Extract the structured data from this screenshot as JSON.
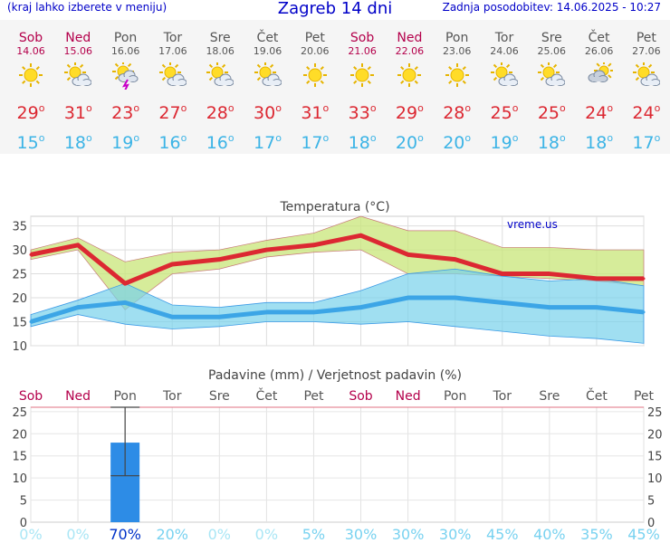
{
  "header": {
    "menu_hint": "(kraj lahko izberete v meniju)",
    "title": "Zagreb 14 dni",
    "updated": "Zadnja posodobitev: 14.06.2025 - 10:27"
  },
  "days": [
    {
      "name": "Sob",
      "date": "14.06",
      "weekend": true,
      "icon": "sun-icon",
      "tmax": "29",
      "tmin": "15"
    },
    {
      "name": "Ned",
      "date": "15.06",
      "weekend": true,
      "icon": "sun-cloud-icon",
      "tmax": "31",
      "tmin": "18"
    },
    {
      "name": "Pon",
      "date": "16.06",
      "weekend": false,
      "icon": "thunderstorm-icon",
      "tmax": "23",
      "tmin": "19"
    },
    {
      "name": "Tor",
      "date": "17.06",
      "weekend": false,
      "icon": "sun-cloud-icon",
      "tmax": "27",
      "tmin": "16"
    },
    {
      "name": "Sre",
      "date": "18.06",
      "weekend": false,
      "icon": "sun-cloud-icon",
      "tmax": "28",
      "tmin": "16"
    },
    {
      "name": "Čet",
      "date": "19.06",
      "weekend": false,
      "icon": "sun-cloud-icon",
      "tmax": "30",
      "tmin": "17"
    },
    {
      "name": "Pet",
      "date": "20.06",
      "weekend": false,
      "icon": "sun-icon",
      "tmax": "31",
      "tmin": "17"
    },
    {
      "name": "Sob",
      "date": "21.06",
      "weekend": true,
      "icon": "sun-icon",
      "tmax": "33",
      "tmin": "18"
    },
    {
      "name": "Ned",
      "date": "22.06",
      "weekend": true,
      "icon": "sun-icon",
      "tmax": "29",
      "tmin": "20"
    },
    {
      "name": "Pon",
      "date": "23.06",
      "weekend": false,
      "icon": "sun-icon",
      "tmax": "28",
      "tmin": "20"
    },
    {
      "name": "Tor",
      "date": "24.06",
      "weekend": false,
      "icon": "sun-cloud-icon",
      "tmax": "25",
      "tmin": "19"
    },
    {
      "name": "Sre",
      "date": "25.06",
      "weekend": false,
      "icon": "sun-cloud-icon",
      "tmax": "25",
      "tmin": "18"
    },
    {
      "name": "Čet",
      "date": "26.06",
      "weekend": false,
      "icon": "cloud-sun-icon",
      "tmax": "24",
      "tmin": "18"
    },
    {
      "name": "Pet",
      "date": "27.06",
      "weekend": false,
      "icon": "sun-cloud-icon",
      "tmax": "24",
      "tmin": "17"
    }
  ],
  "degree_sign": "o",
  "colors": {
    "header_blue": "#0000c8",
    "weekend": "#b4004b",
    "tmax": "#dc2832",
    "tmin": "#3cb4e6",
    "max_band": "#c8e678",
    "min_band": "#78d2eb",
    "bar": "#2d8ce6",
    "prob_zero": "#aae6f5",
    "prob_mid": "#78d2f0",
    "prob_high": "#0032c8"
  },
  "chart_data": [
    {
      "type": "line",
      "title": "Temperatura (°C)",
      "watermark": "vreme.us",
      "ylim": [
        10,
        37
      ],
      "yticks": [
        10,
        15,
        20,
        25,
        30,
        35
      ],
      "x": [
        0,
        1,
        2,
        3,
        4,
        5,
        6,
        7,
        8,
        9,
        10,
        11,
        12,
        13
      ],
      "series": [
        {
          "values": [
            29,
            31,
            23,
            27,
            28,
            30,
            31,
            33,
            29,
            28,
            25,
            25,
            24,
            24
          ]
        },
        {
          "values": [
            15,
            18,
            19,
            16,
            16,
            17,
            17,
            18,
            20,
            20,
            19,
            18,
            18,
            17
          ]
        },
        {
          "values": [
            30,
            32.5,
            27.5,
            29.5,
            30,
            32,
            33.5,
            37,
            34,
            34,
            30.5,
            30.5,
            30,
            30
          ]
        },
        {
          "values": [
            28,
            30,
            17.5,
            25,
            26,
            28.5,
            29.5,
            30,
            25,
            25,
            24.5,
            24,
            23.5,
            22.5
          ]
        },
        {
          "values": [
            16.5,
            19.5,
            23,
            18.5,
            18,
            19,
            19,
            21.5,
            25,
            26,
            24.5,
            23.5,
            24,
            22.5
          ]
        },
        {
          "values": [
            14,
            16.5,
            14.5,
            13.5,
            14,
            15,
            15,
            14.5,
            15,
            14,
            13,
            12,
            11.5,
            10.5
          ]
        }
      ]
    },
    {
      "type": "bar",
      "title": "Padavine (mm) / Verjetnost padavin (%)",
      "ylim": [
        0,
        26
      ],
      "yticks": [
        0,
        5,
        10,
        15,
        20,
        25
      ],
      "categories": [
        "Sob",
        "Ned",
        "Pon",
        "Tor",
        "Sre",
        "Čet",
        "Pet",
        "Sob",
        "Ned",
        "Pon",
        "Tor",
        "Sre",
        "Čet",
        "Pet"
      ],
      "weekend": [
        true,
        true,
        false,
        false,
        false,
        false,
        false,
        true,
        true,
        false,
        false,
        false,
        false,
        false
      ],
      "values": [
        0,
        0,
        18,
        0,
        0,
        0,
        0,
        0,
        0,
        0,
        0,
        0,
        0,
        0
      ],
      "error_low": [
        null,
        null,
        10.5,
        null,
        null,
        null,
        null,
        null,
        null,
        null,
        null,
        null,
        null,
        null
      ],
      "error_high": [
        null,
        null,
        26,
        null,
        null,
        null,
        null,
        null,
        null,
        null,
        null,
        null,
        null,
        null
      ],
      "probability": [
        "0%",
        "0%",
        "70%",
        "20%",
        "0%",
        "0%",
        "5%",
        "30%",
        "30%",
        "30%",
        "45%",
        "40%",
        "35%",
        "45%"
      ]
    }
  ]
}
